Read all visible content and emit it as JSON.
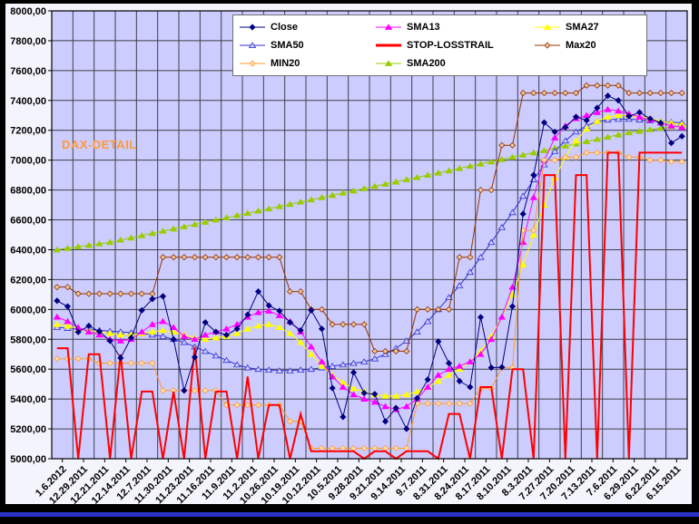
{
  "chart_data": {
    "type": "line",
    "title": "DAX-DETAIL",
    "title_color": "#FF9933",
    "plot_bg": "#CCCCFF",
    "grid_color": "#404048",
    "grid": true,
    "legend_position": "top-center",
    "ylim": [
      5000,
      8000
    ],
    "y_tick_step": 200,
    "y_label_format": "comma-2dp",
    "x_tick_labels": [
      "1.6.2012",
      "12.29.2011",
      "12.21.2011",
      "12.14.2011",
      "12.7.2011",
      "11.30.2011",
      "11.23.2011",
      "11.16.2011",
      "11.9.2011",
      "11.2.2011",
      "10.26.2011",
      "10.19.2011",
      "10.12.2011",
      "10.5.2011",
      "9.28.2011",
      "9.21.2011",
      "9.14.2011",
      "9.7.2011",
      "8.31.2011",
      "8.24.2011",
      "8.17.2011",
      "8.10.2011",
      "8.3.2011",
      "7.27.2011",
      "7.20.2011",
      "7.13.2011",
      "7.6.2011",
      "6.29.2011",
      "6.22.2011",
      "6.15.2011"
    ],
    "points_per_tick": 2,
    "x_axis_note": "time axis reversed: newest dates on the left",
    "legend_order": [
      "Close",
      "SMA13",
      "SMA27",
      "SMA50",
      "STOP-LOSSTRAIL",
      "Max20",
      "MIN20",
      "SMA200"
    ],
    "series": [
      {
        "name": "Close",
        "color": "#000080",
        "marker": "diamond",
        "marker_fill": "#000080",
        "line_width": 1,
        "values": [
          6058,
          6020,
          5849,
          5890,
          5852,
          5790,
          5675,
          5810,
          5994,
          6070,
          6088,
          5800,
          5457,
          5680,
          5913,
          5850,
          5829,
          5870,
          5965,
          6120,
          6026,
          5990,
          5913,
          5860,
          5994,
          5870,
          5473,
          5280,
          5578,
          5440,
          5433,
          5250,
          5340,
          5200,
          5405,
          5530,
          5785,
          5640,
          5520,
          5480,
          5948,
          5610,
          5613,
          6020,
          6640,
          6900,
          7252,
          7190,
          7220,
          7290,
          7267,
          7350,
          7431,
          7400,
          7294,
          7320,
          7278,
          7250,
          7115,
          7160
        ]
      },
      {
        "name": "SMA13",
        "color": "#FF00FF",
        "marker": "triangle",
        "marker_fill": "#FF00FF",
        "line_width": 1,
        "values": [
          5950,
          5920,
          5880,
          5850,
          5830,
          5800,
          5790,
          5800,
          5850,
          5900,
          5920,
          5880,
          5820,
          5800,
          5830,
          5850,
          5870,
          5900,
          5950,
          5980,
          5990,
          5960,
          5920,
          5850,
          5750,
          5650,
          5550,
          5480,
          5430,
          5400,
          5380,
          5350,
          5330,
          5350,
          5400,
          5480,
          5560,
          5600,
          5620,
          5650,
          5700,
          5800,
          5950,
          6150,
          6450,
          6750,
          7000,
          7150,
          7230,
          7280,
          7300,
          7320,
          7340,
          7330,
          7310,
          7290,
          7270,
          7250,
          7230,
          7220
        ]
      },
      {
        "name": "SMA27",
        "color": "#FFFF00",
        "marker": "triangle",
        "marker_fill": "#FFFF00",
        "line_width": 1,
        "values": [
          5900,
          5890,
          5870,
          5860,
          5850,
          5840,
          5830,
          5830,
          5840,
          5850,
          5860,
          5850,
          5830,
          5810,
          5800,
          5810,
          5820,
          5840,
          5870,
          5890,
          5900,
          5880,
          5840,
          5780,
          5700,
          5620,
          5560,
          5510,
          5470,
          5450,
          5430,
          5420,
          5420,
          5430,
          5450,
          5480,
          5520,
          5560,
          5600,
          5650,
          5720,
          5820,
          5950,
          6100,
          6300,
          6500,
          6700,
          6880,
          7020,
          7130,
          7210,
          7260,
          7290,
          7300,
          7300,
          7290,
          7280,
          7260,
          7250,
          7240
        ]
      },
      {
        "name": "SMA50",
        "color": "#3333CC",
        "marker": "triangle-open",
        "marker_fill": "#CCCCFF",
        "line_width": 1,
        "values": [
          5880,
          5875,
          5870,
          5865,
          5860,
          5855,
          5850,
          5845,
          5840,
          5830,
          5820,
          5800,
          5780,
          5750,
          5720,
          5690,
          5660,
          5630,
          5610,
          5600,
          5595,
          5590,
          5590,
          5595,
          5600,
          5610,
          5620,
          5630,
          5640,
          5650,
          5670,
          5700,
          5740,
          5790,
          5850,
          5920,
          6000,
          6080,
          6160,
          6250,
          6350,
          6450,
          6550,
          6650,
          6760,
          6870,
          6970,
          7060,
          7130,
          7190,
          7230,
          7260,
          7270,
          7275,
          7275,
          7270,
          7265,
          7260,
          7255,
          7250
        ]
      },
      {
        "name": "STOP-LOSSTRAIL",
        "color": "#FF0000",
        "marker": "none",
        "marker_fill": "#FF0000",
        "line_width": 2,
        "values": [
          5740,
          5740,
          5000,
          5700,
          5700,
          5000,
          5700,
          5000,
          5450,
          5450,
          5000,
          5450,
          5000,
          5750,
          5000,
          5450,
          5450,
          5000,
          5550,
          5000,
          5360,
          5360,
          5000,
          5300,
          5050,
          5050,
          5050,
          5050,
          5050,
          5000,
          5050,
          5050,
          5000,
          5050,
          5050,
          5050,
          5000,
          5300,
          5300,
          5000,
          5480,
          5480,
          5000,
          5600,
          5600,
          5000,
          6900,
          6900,
          5000,
          6900,
          6900,
          5000,
          7050,
          7050,
          5000,
          7050,
          7050,
          7050,
          7050,
          7050
        ]
      },
      {
        "name": "Max20",
        "color": "#993300",
        "marker": "diamond-open",
        "marker_fill": "#E8C8A0",
        "line_width": 1,
        "values": [
          6150,
          6150,
          6105,
          6105,
          6105,
          6105,
          6105,
          6105,
          6105,
          6105,
          6350,
          6350,
          6350,
          6350,
          6350,
          6350,
          6350,
          6350,
          6350,
          6350,
          6350,
          6350,
          6120,
          6120,
          6000,
          6000,
          5900,
          5900,
          5900,
          5900,
          5720,
          5720,
          5720,
          5720,
          6000,
          6000,
          6000,
          6000,
          6350,
          6350,
          6800,
          6800,
          7100,
          7100,
          7450,
          7450,
          7450,
          7450,
          7450,
          7450,
          7500,
          7500,
          7500,
          7500,
          7450,
          7450,
          7450,
          7450,
          7450,
          7450
        ]
      },
      {
        "name": "MIN20",
        "color": "#FF9933",
        "marker": "diamond-open",
        "marker_fill": "#FFE0B8",
        "line_width": 1,
        "values": [
          5670,
          5670,
          5670,
          5670,
          5640,
          5640,
          5640,
          5640,
          5640,
          5640,
          5457,
          5457,
          5457,
          5457,
          5457,
          5457,
          5360,
          5360,
          5360,
          5360,
          5360,
          5360,
          5250,
          5250,
          5070,
          5070,
          5070,
          5070,
          5070,
          5070,
          5070,
          5070,
          5070,
          5070,
          5370,
          5370,
          5370,
          5370,
          5370,
          5370,
          5470,
          5470,
          5610,
          5610,
          6530,
          6530,
          7000,
          7000,
          7020,
          7020,
          7050,
          7050,
          7050,
          7050,
          7020,
          7020,
          7000,
          7000,
          6990,
          6990
        ]
      },
      {
        "name": "SMA200",
        "color": "#99CC00",
        "marker": "triangle",
        "marker_fill": "#99CC00",
        "line_width": 1,
        "values": [
          6400,
          6410,
          6420,
          6430,
          6440,
          6450,
          6465,
          6480,
          6495,
          6510,
          6525,
          6540,
          6555,
          6570,
          6585,
          6600,
          6615,
          6630,
          6645,
          6660,
          6675,
          6690,
          6705,
          6720,
          6735,
          6750,
          6765,
          6780,
          6795,
          6810,
          6825,
          6840,
          6855,
          6870,
          6885,
          6900,
          6915,
          6930,
          6945,
          6960,
          6975,
          6990,
          7005,
          7020,
          7035,
          7050,
          7065,
          7080,
          7095,
          7110,
          7125,
          7140,
          7155,
          7170,
          7185,
          7195,
          7205,
          7215,
          7225,
          7230
        ]
      }
    ]
  }
}
